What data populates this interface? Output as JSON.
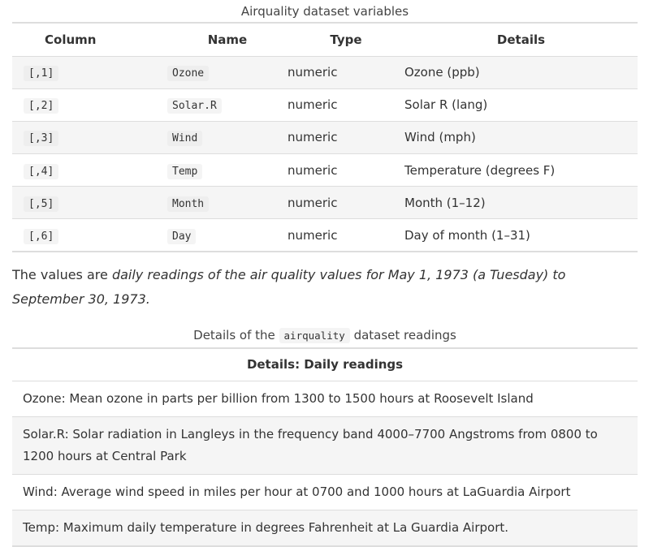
{
  "table1": {
    "caption": "Airquality dataset variables",
    "headers": {
      "column": "Column",
      "name": "Name",
      "type": "Type",
      "details": "Details"
    },
    "rows": [
      {
        "column": "[,1]",
        "name": "Ozone",
        "type": "numeric",
        "details": "Ozone (ppb)"
      },
      {
        "column": "[,2]",
        "name": "Solar.R",
        "type": "numeric",
        "details": "Solar R (lang)"
      },
      {
        "column": "[,3]",
        "name": "Wind",
        "type": "numeric",
        "details": "Wind (mph)"
      },
      {
        "column": "[,4]",
        "name": "Temp",
        "type": "numeric",
        "details": "Temperature (degrees F)"
      },
      {
        "column": "[,5]",
        "name": "Month",
        "type": "numeric",
        "details": "Month (1–12)"
      },
      {
        "column": "[,6]",
        "name": "Day",
        "type": "numeric",
        "details": "Day of month (1–31)"
      }
    ]
  },
  "paragraph": {
    "prefix": "The values are ",
    "emphasis": "daily readings of the air quality values for May 1, 1973 (a Tuesday) to September 30, 1973."
  },
  "table2": {
    "caption_before": "Details of the ",
    "caption_code": "airquality",
    "caption_after": " dataset readings",
    "header": "Details: Daily readings",
    "rows": [
      "Ozone: Mean ozone in parts per billion from 1300 to 1500 hours at Roosevelt Island",
      "Solar.R: Solar radiation in Langleys in the frequency band 4000–7700 Angstroms from 0800 to 1200 hours at Central Park",
      "Wind: Average wind speed in miles per hour at 0700 and 1000 hours at LaGuardia Airport",
      "Temp: Maximum daily temperature in degrees Fahrenheit at La Guardia Airport."
    ]
  }
}
